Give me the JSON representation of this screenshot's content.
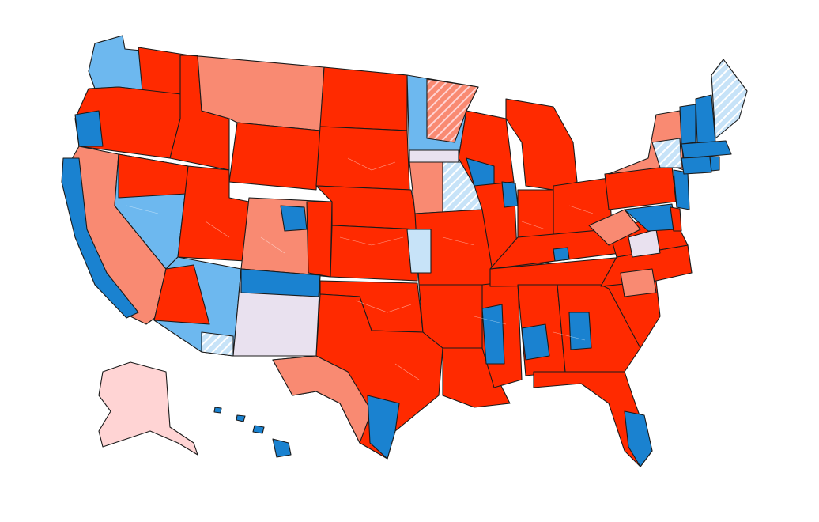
{
  "colors": {
    "solid_r": "#ff2a00",
    "lean_r": "#f98a72",
    "tilt_r": "#ffd4d4",
    "solid_d": "#1a82d0",
    "lean_d": "#6db8ef",
    "tilt_d": "#c7e3f8",
    "tossup": "#e9e1ef",
    "border": "#1a1a1a"
  },
  "legend": []
}
